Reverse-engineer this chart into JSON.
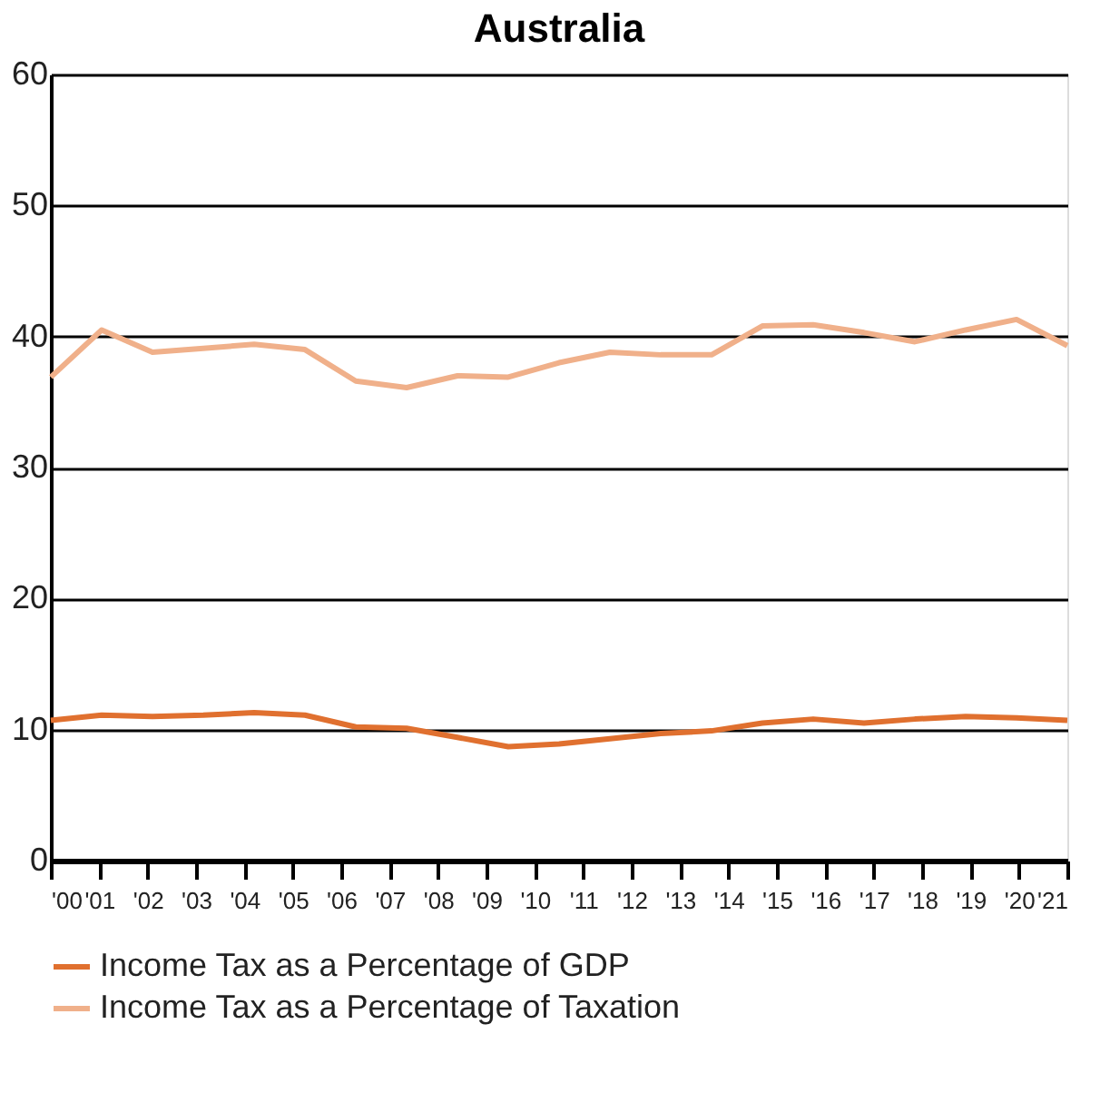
{
  "chart_data": {
    "type": "line",
    "title": "Australia",
    "xlim": [
      2000,
      2021
    ],
    "xticks": [
      {
        "value": 2000,
        "label": "'00"
      },
      {
        "value": 2001,
        "label": "'01"
      },
      {
        "value": 2002,
        "label": "'02"
      },
      {
        "value": 2003,
        "label": "'03"
      },
      {
        "value": 2004,
        "label": "'04"
      },
      {
        "value": 2005,
        "label": "'05"
      },
      {
        "value": 2006,
        "label": "'06"
      },
      {
        "value": 2007,
        "label": "'07"
      },
      {
        "value": 2008,
        "label": "'08"
      },
      {
        "value": 2009,
        "label": "'09"
      },
      {
        "value": 2010,
        "label": "'10"
      },
      {
        "value": 2011,
        "label": "'11"
      },
      {
        "value": 2012,
        "label": "'12"
      },
      {
        "value": 2013,
        "label": "'13"
      },
      {
        "value": 2014,
        "label": "'14"
      },
      {
        "value": 2015,
        "label": "'15"
      },
      {
        "value": 2016,
        "label": "'16"
      },
      {
        "value": 2017,
        "label": "'17"
      },
      {
        "value": 2018,
        "label": "'18"
      },
      {
        "value": 2019,
        "label": "'19"
      },
      {
        "value": 2020,
        "label": "'20"
      },
      {
        "value": 2021,
        "label": "'21"
      }
    ],
    "x": [
      2000,
      2001.05,
      2002.1,
      2003.15,
      2004.2,
      2005.25,
      2006.3,
      2007.35,
      2008.4,
      2009.45,
      2010.5,
      2011.55,
      2012.6,
      2013.65,
      2014.7,
      2015.75,
      2016.8,
      2017.85,
      2018.9,
      2019.95,
      2021
    ],
    "ylim": [
      0,
      60
    ],
    "yticks": [
      0,
      10,
      20,
      30,
      40,
      50,
      60
    ],
    "grid": "y",
    "legend": "bottom",
    "line_style": "solid",
    "marker": "none",
    "series": [
      {
        "name": "Income Tax as a Percentage of GDP",
        "color": "#e0702f",
        "values": [
          10.7,
          11.1,
          11.0,
          11.1,
          11.3,
          11.1,
          10.2,
          10.1,
          9.4,
          8.7,
          8.9,
          9.3,
          9.7,
          9.9,
          10.5,
          10.8,
          10.5,
          10.8,
          11.0,
          10.9,
          10.7
        ]
      },
      {
        "name": "Income Tax as a Percentage of Taxation",
        "color": "#f0b08a",
        "values": [
          36.9,
          40.5,
          38.8,
          39.1,
          39.4,
          39.0,
          36.6,
          36.1,
          37.0,
          36.9,
          38.0,
          38.8,
          38.6,
          38.6,
          40.8,
          40.9,
          40.3,
          39.6,
          40.5,
          41.3,
          39.3
        ]
      }
    ]
  }
}
